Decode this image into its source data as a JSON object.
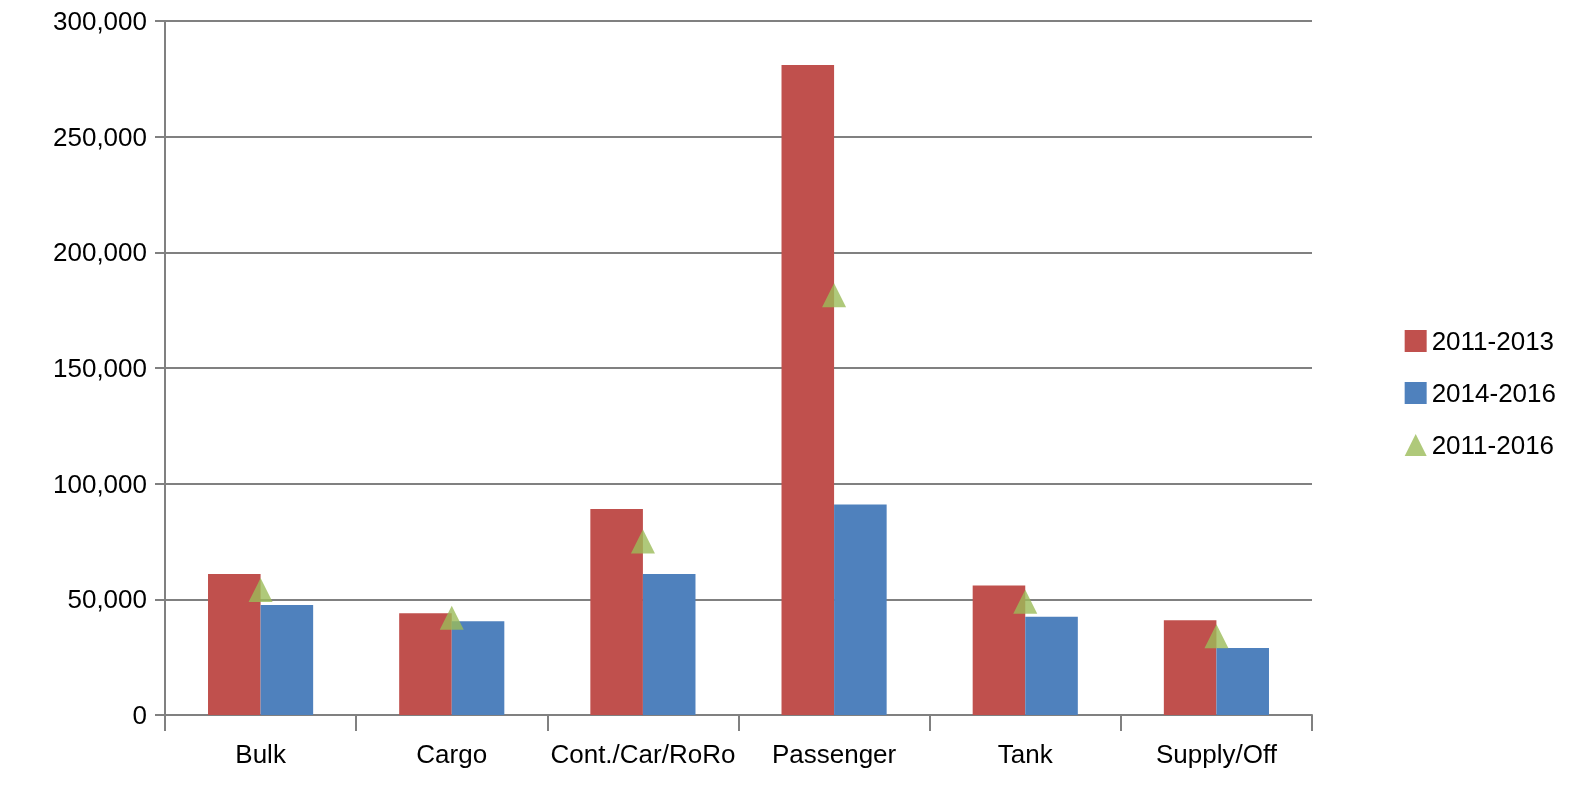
{
  "chart_data": {
    "type": "bar",
    "categories": [
      "Bulk",
      "Cargo",
      "Cont./Car/RoRo",
      "Passenger",
      "Tank",
      "Supply/Off"
    ],
    "series": [
      {
        "name": "2011-2013",
        "color": "#c0504d",
        "values": [
          61000,
          44000,
          89000,
          281000,
          56000,
          41000
        ]
      },
      {
        "name": "2014-2016",
        "color": "#4f81bd",
        "values": [
          47500,
          40500,
          61000,
          91000,
          42500,
          29000
        ]
      },
      {
        "name": "2011-2016",
        "type": "scatter",
        "marker": "triangle",
        "color": "#9bbb59",
        "x": [
          "Bulk",
          "Cargo",
          "Cont./Car/RoRo",
          "Passenger",
          "Tank",
          "Supply/Off"
        ],
        "values": [
          54000,
          42000,
          75000,
          181500,
          49000,
          34000
        ]
      }
    ],
    "ylim": [
      0,
      300000
    ],
    "yticks": [
      0,
      {
        "value": 50000,
        "label": "50,000"
      },
      {
        "value": 100000,
        "label": "100,000"
      },
      {
        "value": 150000,
        "label": "150,000"
      },
      {
        "value": 200000,
        "label": "200,000"
      },
      {
        "value": 250000,
        "label": "250,000"
      },
      {
        "value": 300000,
        "label": "300,000"
      }
    ],
    "grid": "y",
    "legend": "right"
  }
}
